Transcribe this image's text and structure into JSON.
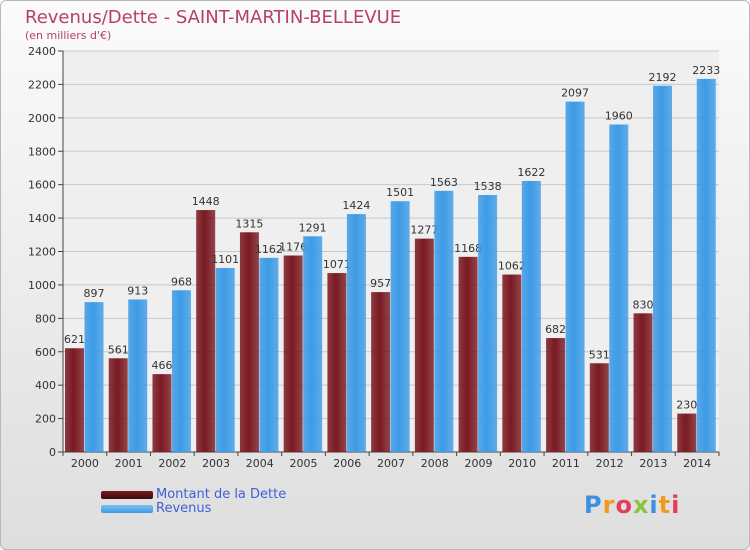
{
  "title": "Revenus/Dette - SAINT-MARTIN-BELLEVUE",
  "subtitle": "(en milliers d'€)",
  "logo_text": "Proxiti",
  "chart_data": {
    "type": "bar",
    "categories": [
      "2000",
      "2001",
      "2002",
      "2003",
      "2004",
      "2005",
      "2006",
      "2007",
      "2008",
      "2009",
      "2010",
      "2011",
      "2012",
      "2013",
      "2014"
    ],
    "series": [
      {
        "name": "Montant de la Dette",
        "color": "#7a1a22",
        "values": [
          621,
          561,
          466,
          1448,
          1315,
          1176,
          1071,
          957,
          1277,
          1168,
          1062,
          682,
          531,
          830,
          230
        ]
      },
      {
        "name": "Revenus",
        "color": "#3d9be6",
        "values": [
          897,
          913,
          968,
          1101,
          1162,
          1291,
          1424,
          1501,
          1563,
          1538,
          1622,
          2097,
          1960,
          2192,
          2233
        ]
      }
    ],
    "data_labels": [
      [
        "621",
        "561",
        "466",
        "1448",
        "1315",
        "1176",
        "1071",
        "957",
        "1277",
        "1168",
        "1062",
        "682",
        "531",
        "830",
        "230"
      ],
      [
        "897",
        "913",
        "968",
        "1101",
        "1162",
        "1291",
        "1424",
        "1501",
        "1563",
        "1538",
        "1622",
        "2097",
        "1960",
        "2192",
        "2233"
      ]
    ],
    "y_ticks": [
      "0",
      "200",
      "400",
      "600",
      "800",
      "1000",
      "1200",
      "1400",
      "1600",
      "1800",
      "2000",
      "2200",
      "2400"
    ],
    "ylim": [
      0,
      2400
    ],
    "grid": true,
    "legend_position": "bottom-left"
  }
}
